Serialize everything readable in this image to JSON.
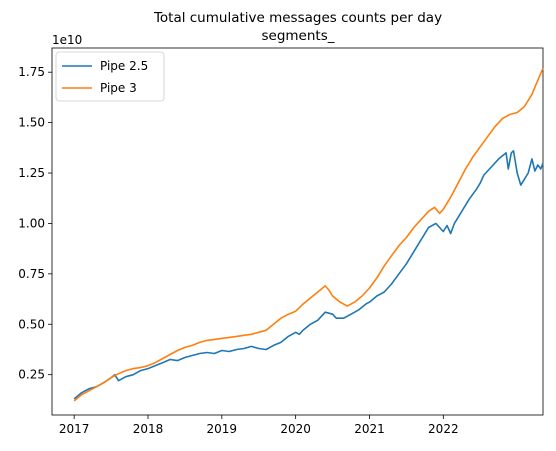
{
  "chart_data": {
    "type": "line",
    "title_lines": [
      "Total cumulative messages counts per day",
      "segments_"
    ],
    "y_offset_label": "1e10",
    "xlabel": "",
    "ylabel": "",
    "x_ticks": [
      "2017",
      "2018",
      "2019",
      "2020",
      "2021",
      "2022"
    ],
    "y_ticks": [
      "0.25",
      "0.50",
      "0.75",
      "1.00",
      "1.25",
      "1.50",
      "1.75"
    ],
    "xlim": [
      2016.7,
      2023.35
    ],
    "ylim": [
      0.05,
      1.87
    ],
    "legend_position": "upper-left",
    "grid": false,
    "series": [
      {
        "name": "Pipe 2.5",
        "color": "#1f77b4",
        "points": [
          [
            2017.0,
            0.13
          ],
          [
            2017.1,
            0.16
          ],
          [
            2017.2,
            0.18
          ],
          [
            2017.3,
            0.19
          ],
          [
            2017.4,
            0.21
          ],
          [
            2017.5,
            0.235
          ],
          [
            2017.55,
            0.25
          ],
          [
            2017.6,
            0.22
          ],
          [
            2017.7,
            0.24
          ],
          [
            2017.8,
            0.25
          ],
          [
            2017.9,
            0.27
          ],
          [
            2018.0,
            0.28
          ],
          [
            2018.1,
            0.295
          ],
          [
            2018.2,
            0.31
          ],
          [
            2018.3,
            0.325
          ],
          [
            2018.4,
            0.32
          ],
          [
            2018.5,
            0.335
          ],
          [
            2018.6,
            0.345
          ],
          [
            2018.7,
            0.355
          ],
          [
            2018.8,
            0.36
          ],
          [
            2018.9,
            0.355
          ],
          [
            2019.0,
            0.37
          ],
          [
            2019.1,
            0.365
          ],
          [
            2019.2,
            0.375
          ],
          [
            2019.3,
            0.38
          ],
          [
            2019.4,
            0.39
          ],
          [
            2019.5,
            0.38
          ],
          [
            2019.6,
            0.375
          ],
          [
            2019.7,
            0.395
          ],
          [
            2019.8,
            0.41
          ],
          [
            2019.9,
            0.44
          ],
          [
            2020.0,
            0.46
          ],
          [
            2020.05,
            0.45
          ],
          [
            2020.1,
            0.47
          ],
          [
            2020.2,
            0.5
          ],
          [
            2020.3,
            0.52
          ],
          [
            2020.4,
            0.56
          ],
          [
            2020.5,
            0.55
          ],
          [
            2020.55,
            0.53
          ],
          [
            2020.65,
            0.53
          ],
          [
            2020.75,
            0.55
          ],
          [
            2020.85,
            0.57
          ],
          [
            2020.95,
            0.6
          ],
          [
            2021.0,
            0.61
          ],
          [
            2021.1,
            0.64
          ],
          [
            2021.2,
            0.66
          ],
          [
            2021.3,
            0.7
          ],
          [
            2021.4,
            0.75
          ],
          [
            2021.5,
            0.8
          ],
          [
            2021.6,
            0.86
          ],
          [
            2021.7,
            0.92
          ],
          [
            2021.8,
            0.98
          ],
          [
            2021.9,
            1.0
          ],
          [
            2021.95,
            0.98
          ],
          [
            2022.0,
            0.96
          ],
          [
            2022.05,
            0.99
          ],
          [
            2022.1,
            0.95
          ],
          [
            2022.15,
            1.0
          ],
          [
            2022.25,
            1.06
          ],
          [
            2022.35,
            1.12
          ],
          [
            2022.45,
            1.17
          ],
          [
            2022.5,
            1.2
          ],
          [
            2022.55,
            1.24
          ],
          [
            2022.65,
            1.28
          ],
          [
            2022.75,
            1.32
          ],
          [
            2022.85,
            1.35
          ],
          [
            2022.88,
            1.27
          ],
          [
            2022.92,
            1.35
          ],
          [
            2022.95,
            1.36
          ],
          [
            2023.0,
            1.25
          ],
          [
            2023.05,
            1.19
          ],
          [
            2023.1,
            1.22
          ],
          [
            2023.15,
            1.25
          ],
          [
            2023.2,
            1.32
          ],
          [
            2023.24,
            1.26
          ],
          [
            2023.28,
            1.29
          ],
          [
            2023.32,
            1.27
          ],
          [
            2023.35,
            1.3
          ]
        ]
      },
      {
        "name": "Pipe 3",
        "color": "#ff7f0e",
        "points": [
          [
            2017.0,
            0.12
          ],
          [
            2017.1,
            0.15
          ],
          [
            2017.2,
            0.17
          ],
          [
            2017.3,
            0.19
          ],
          [
            2017.4,
            0.21
          ],
          [
            2017.5,
            0.235
          ],
          [
            2017.6,
            0.255
          ],
          [
            2017.7,
            0.27
          ],
          [
            2017.8,
            0.28
          ],
          [
            2017.9,
            0.285
          ],
          [
            2018.0,
            0.295
          ],
          [
            2018.1,
            0.31
          ],
          [
            2018.2,
            0.33
          ],
          [
            2018.3,
            0.35
          ],
          [
            2018.4,
            0.37
          ],
          [
            2018.5,
            0.385
          ],
          [
            2018.6,
            0.395
          ],
          [
            2018.7,
            0.41
          ],
          [
            2018.8,
            0.42
          ],
          [
            2018.9,
            0.425
          ],
          [
            2019.0,
            0.43
          ],
          [
            2019.1,
            0.435
          ],
          [
            2019.2,
            0.44
          ],
          [
            2019.3,
            0.445
          ],
          [
            2019.4,
            0.45
          ],
          [
            2019.5,
            0.46
          ],
          [
            2019.6,
            0.47
          ],
          [
            2019.7,
            0.5
          ],
          [
            2019.8,
            0.53
          ],
          [
            2019.9,
            0.55
          ],
          [
            2020.0,
            0.565
          ],
          [
            2020.1,
            0.6
          ],
          [
            2020.2,
            0.63
          ],
          [
            2020.3,
            0.66
          ],
          [
            2020.4,
            0.69
          ],
          [
            2020.45,
            0.67
          ],
          [
            2020.5,
            0.64
          ],
          [
            2020.6,
            0.61
          ],
          [
            2020.7,
            0.59
          ],
          [
            2020.8,
            0.61
          ],
          [
            2020.9,
            0.64
          ],
          [
            2021.0,
            0.68
          ],
          [
            2021.1,
            0.73
          ],
          [
            2021.2,
            0.79
          ],
          [
            2021.3,
            0.84
          ],
          [
            2021.4,
            0.89
          ],
          [
            2021.5,
            0.93
          ],
          [
            2021.6,
            0.98
          ],
          [
            2021.7,
            1.02
          ],
          [
            2021.8,
            1.06
          ],
          [
            2021.88,
            1.08
          ],
          [
            2021.95,
            1.05
          ],
          [
            2022.0,
            1.07
          ],
          [
            2022.1,
            1.13
          ],
          [
            2022.2,
            1.2
          ],
          [
            2022.3,
            1.27
          ],
          [
            2022.4,
            1.33
          ],
          [
            2022.5,
            1.38
          ],
          [
            2022.6,
            1.43
          ],
          [
            2022.7,
            1.48
          ],
          [
            2022.8,
            1.52
          ],
          [
            2022.9,
            1.54
          ],
          [
            2023.0,
            1.55
          ],
          [
            2023.1,
            1.58
          ],
          [
            2023.2,
            1.64
          ],
          [
            2023.28,
            1.71
          ],
          [
            2023.35,
            1.77
          ]
        ]
      }
    ]
  }
}
